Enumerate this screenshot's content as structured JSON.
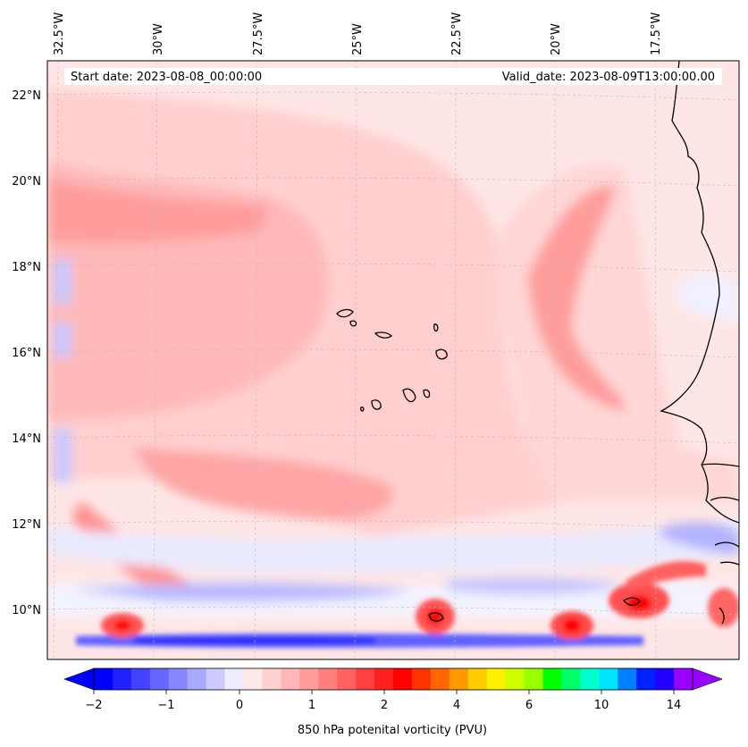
{
  "chart_data": {
    "type": "map",
    "region": "Eastern tropical Atlantic / Cape Verde",
    "start_date_label": "Start date: 2023-08-08_00:00:00",
    "valid_date_label": "Valid_date: 2023-08-09T13:00:00.00",
    "lon_labels": [
      "32.5°W",
      "30°W",
      "27.5°W",
      "25°W",
      "22.5°W",
      "20°W",
      "17.5°W"
    ],
    "lat_labels": [
      "22°N",
      "20°N",
      "18°N",
      "16°N",
      "14°N",
      "12°N",
      "10°N"
    ],
    "colorbar": {
      "label": "850 hPa potenital vorticity (PVU)",
      "tick_labels": [
        "−2",
        "−1",
        "0",
        "1",
        "2",
        "4",
        "6",
        "10",
        "14"
      ],
      "extend": "both",
      "colors": [
        "#0000ff",
        "#2121ff",
        "#4343ff",
        "#6565ff",
        "#8787ff",
        "#a9a9ff",
        "#cbcbff",
        "#ededff",
        "#ffe8e8",
        "#ffd0d0",
        "#ffb6b6",
        "#ff9c9c",
        "#ff7e7e",
        "#ff6262",
        "#ff4040",
        "#ff2020",
        "#ff0000",
        "#ff3300",
        "#ff6600",
        "#ff9900",
        "#ffcc00",
        "#fff000",
        "#ccff00",
        "#99ff00",
        "#00ff00",
        "#00ff66",
        "#00ffcc",
        "#00e5ff",
        "#0080ff",
        "#0022ff",
        "#2200ff",
        "#9900ff"
      ]
    }
  }
}
